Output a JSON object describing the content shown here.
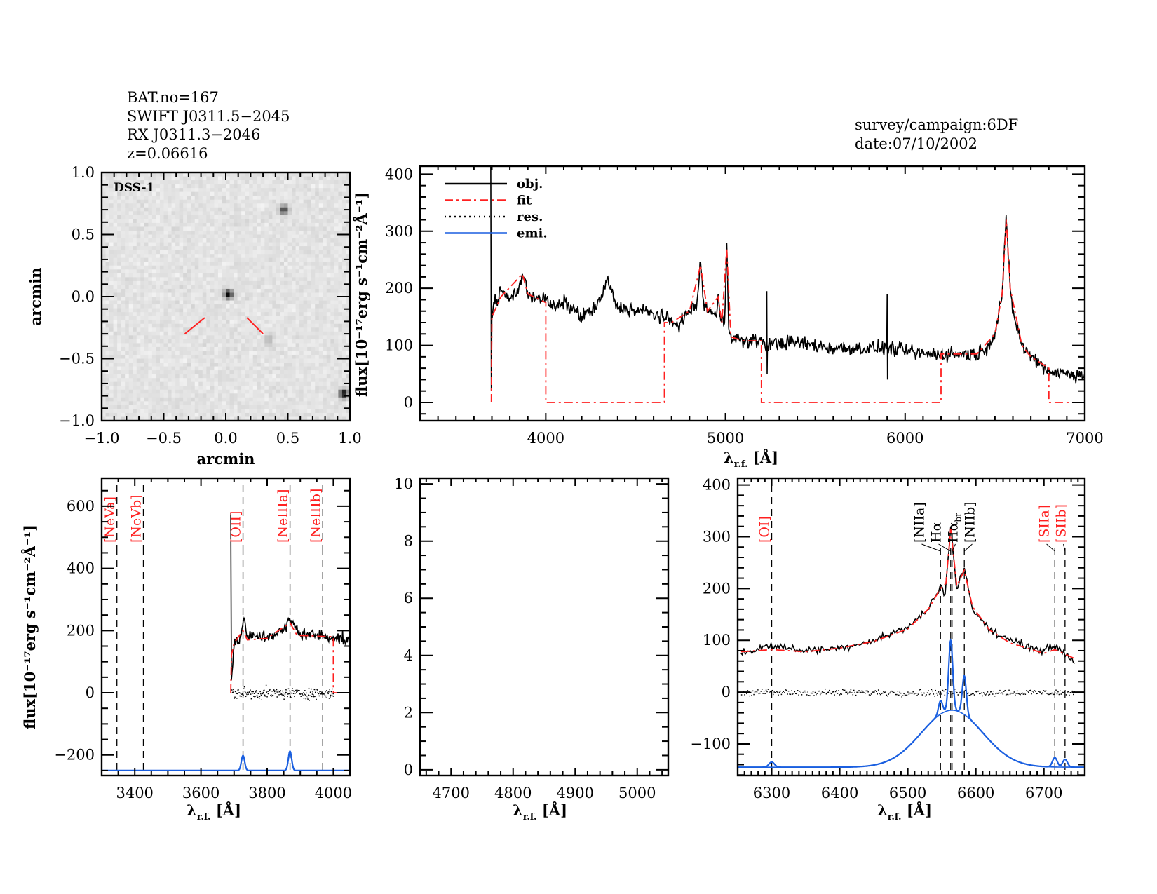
{
  "header": {
    "lines": [
      "BAT.no=167",
      "SWIFT J0311.5−2045",
      "RX J0311.3−2046",
      "z=0.06616"
    ],
    "survey": "survey/campaign:6DF",
    "date": "date:07/10/2002"
  },
  "colors": {
    "obj": "#000000",
    "fit": "#ff2020",
    "res": "#000000",
    "emi": "#1a5fe0",
    "marker": "#ff2020"
  },
  "chart_data": [
    {
      "id": "image",
      "type": "heatmap",
      "label": "DSS-1",
      "xlabel": "arcmin",
      "ylabel": "arcmin",
      "xlim": [
        -1,
        1
      ],
      "ylim": [
        -1,
        1
      ],
      "xticks": [
        -1,
        -0.5,
        0,
        0.5,
        1
      ],
      "xticklabels": [
        "−1.0",
        "−0.5",
        "0.0",
        "0.5",
        "1.0"
      ],
      "yticks": [
        -1,
        -0.5,
        0,
        0.5,
        1
      ],
      "yticklabels": [
        "−1.0",
        "−0.5",
        "0.0",
        "0.5",
        "1.0"
      ],
      "sources": [
        {
          "x": 0.02,
          "y": 0.02,
          "brightness": 1.0
        },
        {
          "x": 0.47,
          "y": 0.7,
          "brightness": 0.8
        },
        {
          "x": 0.95,
          "y": -0.78,
          "brightness": 1.0
        },
        {
          "x": 0.35,
          "y": -0.35,
          "brightness": 0.25
        }
      ],
      "target_marker": [
        [
          [
            -0.33,
            -0.3
          ],
          [
            -0.17,
            -0.17
          ]
        ],
        [
          [
            0.17,
            -0.17
          ],
          [
            0.3,
            -0.3
          ]
        ]
      ]
    },
    {
      "id": "overview",
      "type": "line",
      "xlabel": {
        "main": "λ",
        "sub": "r.f.",
        "rest": " [Å]"
      },
      "ylabel": "flux[10⁻¹⁷erg s⁻¹cm⁻²Å⁻¹]",
      "xlim": [
        3300,
        7000
      ],
      "ylim": [
        -32,
        414
      ],
      "xticks": [
        4000,
        5000,
        6000,
        7000
      ],
      "yticks": [
        0,
        100,
        200,
        300,
        400
      ],
      "legend": {
        "position": "top-left",
        "entries": [
          {
            "name": "obj.",
            "style": "solid",
            "color": "#000000"
          },
          {
            "name": "fit",
            "style": "dashdot",
            "color": "#ff2020"
          },
          {
            "name": "res.",
            "style": "dotted",
            "color": "#000000"
          },
          {
            "name": "emi.",
            "style": "solid",
            "color": "#1a5fe0"
          }
        ]
      },
      "series": [
        {
          "name": "obj.",
          "points": [
            [
              3694,
              414
            ],
            [
              3697,
              20
            ],
            [
              3700,
              160
            ],
            [
              3750,
              195
            ],
            [
              3800,
              180
            ],
            [
              3850,
              200
            ],
            [
              3870,
              225
            ],
            [
              3900,
              190
            ],
            [
              3950,
              185
            ],
            [
              4000,
              180
            ],
            [
              4050,
              165
            ],
            [
              4100,
              175
            ],
            [
              4150,
              165
            ],
            [
              4200,
              150
            ],
            [
              4250,
              160
            ],
            [
              4300,
              175
            ],
            [
              4340,
              215
            ],
            [
              4400,
              165
            ],
            [
              4450,
              165
            ],
            [
              4500,
              160
            ],
            [
              4550,
              160
            ],
            [
              4600,
              155
            ],
            [
              4650,
              150
            ],
            [
              4700,
              140
            ],
            [
              4750,
              140
            ],
            [
              4800,
              160
            ],
            [
              4840,
              170
            ],
            [
              4861,
              245
            ],
            [
              4880,
              170
            ],
            [
              4950,
              150
            ],
            [
              4959,
              190
            ],
            [
              4968,
              150
            ],
            [
              4995,
              140
            ],
            [
              5007,
              280
            ],
            [
              5018,
              130
            ],
            [
              5030,
              120
            ],
            [
              5100,
              105
            ],
            [
              5200,
              110
            ],
            [
              5228,
              100
            ],
            [
              5230,
              195
            ],
            [
              5232,
              50
            ],
            [
              5234,
              100
            ],
            [
              5300,
              105
            ],
            [
              5400,
              105
            ],
            [
              5500,
              100
            ],
            [
              5600,
              95
            ],
            [
              5700,
              95
            ],
            [
              5800,
              95
            ],
            [
              5898,
              95
            ],
            [
              5900,
              190
            ],
            [
              5902,
              40
            ],
            [
              5904,
              95
            ],
            [
              6000,
              90
            ],
            [
              6100,
              85
            ],
            [
              6200,
              85
            ],
            [
              6300,
              85
            ],
            [
              6400,
              85
            ],
            [
              6450,
              95
            ],
            [
              6500,
              120
            ],
            [
              6540,
              190
            ],
            [
              6563,
              320
            ],
            [
              6585,
              200
            ],
            [
              6600,
              160
            ],
            [
              6650,
              100
            ],
            [
              6700,
              80
            ],
            [
              6750,
              70
            ],
            [
              6800,
              55
            ],
            [
              6900,
              50
            ],
            [
              7000,
              50
            ]
          ]
        },
        {
          "name": "fit",
          "points": [
            [
              3697,
              0
            ],
            [
              3700,
              150
            ],
            [
              3750,
              185
            ],
            [
              3870,
              225
            ],
            [
              3900,
              190
            ],
            [
              4000,
              175
            ],
            [
              4000,
              0
            ],
            [
              4660,
              0
            ],
            [
              4660,
              140
            ],
            [
              4700,
              140
            ],
            [
              4800,
              160
            ],
            [
              4861,
              240
            ],
            [
              4900,
              160
            ],
            [
              4959,
              185
            ],
            [
              4980,
              140
            ],
            [
              5007,
              270
            ],
            [
              5030,
              115
            ],
            [
              5100,
              108
            ],
            [
              5200,
              108
            ],
            [
              5200,
              0
            ],
            [
              6200,
              0
            ],
            [
              6200,
              85
            ],
            [
              6400,
              85
            ],
            [
              6500,
              120
            ],
            [
              6540,
              190
            ],
            [
              6563,
              320
            ],
            [
              6585,
              200
            ],
            [
              6650,
              100
            ],
            [
              6700,
              80
            ],
            [
              6800,
              60
            ],
            [
              6800,
              0
            ],
            [
              7000,
              0
            ]
          ]
        }
      ]
    },
    {
      "id": "oii-neiii",
      "type": "line",
      "xlabel": {
        "main": "λ",
        "sub": "r.f.",
        "rest": " [Å]"
      },
      "ylabel": "flux[10⁻¹⁷erg s⁻¹cm⁻²Å⁻¹]",
      "xlim": [
        3300,
        4050
      ],
      "ylim": [
        -266,
        690
      ],
      "xticks": [
        3400,
        3600,
        3800,
        4000
      ],
      "yticks": [
        -200,
        0,
        200,
        400,
        600
      ],
      "lines": [
        {
          "text": "[NeVa]",
          "sub": "",
          "x": 3346,
          "color": "#ff2020"
        },
        {
          "text": "[NeVb]",
          "sub": "",
          "x": 3426,
          "color": "#ff2020"
        },
        {
          "text": "[OII]",
          "sub": "",
          "x": 3727,
          "color": "#ff2020"
        },
        {
          "text": "[NeIIIa]",
          "sub": "",
          "x": 3869,
          "color": "#ff2020"
        },
        {
          "text": "[NeIIIb]",
          "sub": "",
          "x": 3968,
          "color": "#ff2020"
        }
      ],
      "series": [
        {
          "name": "obj.",
          "points": [
            [
              3690,
              580
            ],
            [
              3692,
              40
            ],
            [
              3700,
              150
            ],
            [
              3720,
              180
            ],
            [
              3730,
              240
            ],
            [
              3740,
              180
            ],
            [
              3800,
              180
            ],
            [
              3850,
              200
            ],
            [
              3869,
              235
            ],
            [
              3900,
              190
            ],
            [
              3950,
              185
            ],
            [
              4000,
              180
            ],
            [
              4050,
              165
            ]
          ]
        },
        {
          "name": "fit",
          "points": [
            [
              3690,
              0
            ],
            [
              3692,
              120
            ],
            [
              3700,
              160
            ],
            [
              3727,
              200
            ],
            [
              3740,
              170
            ],
            [
              3800,
              175
            ],
            [
              3869,
              225
            ],
            [
              3890,
              185
            ],
            [
              4000,
              180
            ],
            [
              4000,
              0
            ],
            [
              4050,
              0
            ]
          ]
        },
        {
          "name": "res.",
          "x_range": [
            3692,
            4000
          ]
        },
        {
          "name": "emi.",
          "baseline": -250,
          "x_range": [
            3300,
            4050
          ],
          "components": [
            {
              "center": 3727,
              "amplitude": 48,
              "sigma": 5
            },
            {
              "center": 3869,
              "amplitude": 62,
              "sigma": 5
            }
          ]
        }
      ]
    },
    {
      "id": "hbeta-oiii",
      "type": "line",
      "xlabel": {
        "main": "λ",
        "sub": "r.f.",
        "rest": " [Å]"
      },
      "xlim": [
        4650,
        5050
      ],
      "ylim": [
        -0.2,
        10.2
      ],
      "xticks": [
        4700,
        4800,
        4900,
        5000
      ],
      "yticks": [
        0,
        2,
        4,
        6,
        8,
        10
      ],
      "series": []
    },
    {
      "id": "halpha",
      "type": "line",
      "xlabel": {
        "main": "λ",
        "sub": "r.f.",
        "rest": " [Å]"
      },
      "xlim": [
        6250,
        6760
      ],
      "ylim": [
        -161,
        413
      ],
      "xticks": [
        6300,
        6400,
        6500,
        6600,
        6700
      ],
      "yticks": [
        -100,
        0,
        100,
        200,
        300,
        400
      ],
      "lines": [
        {
          "text": "[OI]",
          "sub": "",
          "x": 6300,
          "color": "#ff2020"
        },
        {
          "text": "[NIIa]",
          "sub": "",
          "x": 6548,
          "color": "#000000"
        },
        {
          "text": "Hα",
          "sub": "",
          "x": 6563,
          "color": "#000000"
        },
        {
          "text": "Hα",
          "sub": "br",
          "x": 6565,
          "color": "#000000"
        },
        {
          "text": "[NIIb]",
          "sub": "",
          "x": 6583,
          "color": "#000000"
        },
        {
          "text": "[SIIa]",
          "sub": "",
          "x": 6716,
          "color": "#ff2020"
        },
        {
          "text": "[SIIb]",
          "sub": "",
          "x": 6731,
          "color": "#ff2020"
        }
      ],
      "series": [
        {
          "name": "obj.",
          "points": [
            [
              6255,
              75
            ],
            [
              6300,
              90
            ],
            [
              6350,
              80
            ],
            [
              6400,
              85
            ],
            [
              6450,
              100
            ],
            [
              6500,
              125
            ],
            [
              6530,
              160
            ],
            [
              6548,
              205
            ],
            [
              6555,
              190
            ],
            [
              6563,
              320
            ],
            [
              6572,
              200
            ],
            [
              6583,
              240
            ],
            [
              6595,
              160
            ],
            [
              6620,
              120
            ],
            [
              6650,
              100
            ],
            [
              6700,
              80
            ],
            [
              6716,
              90
            ],
            [
              6740,
              65
            ],
            [
              6745,
              55
            ]
          ]
        },
        {
          "name": "fit",
          "points": [
            [
              6255,
              78
            ],
            [
              6300,
              82
            ],
            [
              6350,
              78
            ],
            [
              6400,
              85
            ],
            [
              6450,
              98
            ],
            [
              6500,
              122
            ],
            [
              6530,
              160
            ],
            [
              6548,
              200
            ],
            [
              6556,
              210
            ],
            [
              6563,
              315
            ],
            [
              6572,
              205
            ],
            [
              6583,
              235
            ],
            [
              6595,
              165
            ],
            [
              6620,
              120
            ],
            [
              6650,
              95
            ],
            [
              6700,
              75
            ],
            [
              6716,
              82
            ],
            [
              6745,
              65
            ]
          ]
        },
        {
          "name": "res.",
          "x_range": [
            6255,
            6745
          ]
        },
        {
          "name": "emi.",
          "baseline": -145,
          "x_range": [
            6250,
            6760
          ],
          "components": [
            {
              "center": 6300,
              "amplitude": 10,
              "sigma": 4
            },
            {
              "center": 6565,
              "amplitude": 110,
              "sigma": 45
            },
            {
              "center": 6548,
              "amplitude": 26,
              "sigma": 3
            },
            {
              "center": 6563,
              "amplitude": 135,
              "sigma": 3
            },
            {
              "center": 6583,
              "amplitude": 75,
              "sigma": 3
            },
            {
              "center": 6716,
              "amplitude": 18,
              "sigma": 3.5
            },
            {
              "center": 6731,
              "amplitude": 15,
              "sigma": 3.5
            }
          ]
        }
      ]
    }
  ]
}
